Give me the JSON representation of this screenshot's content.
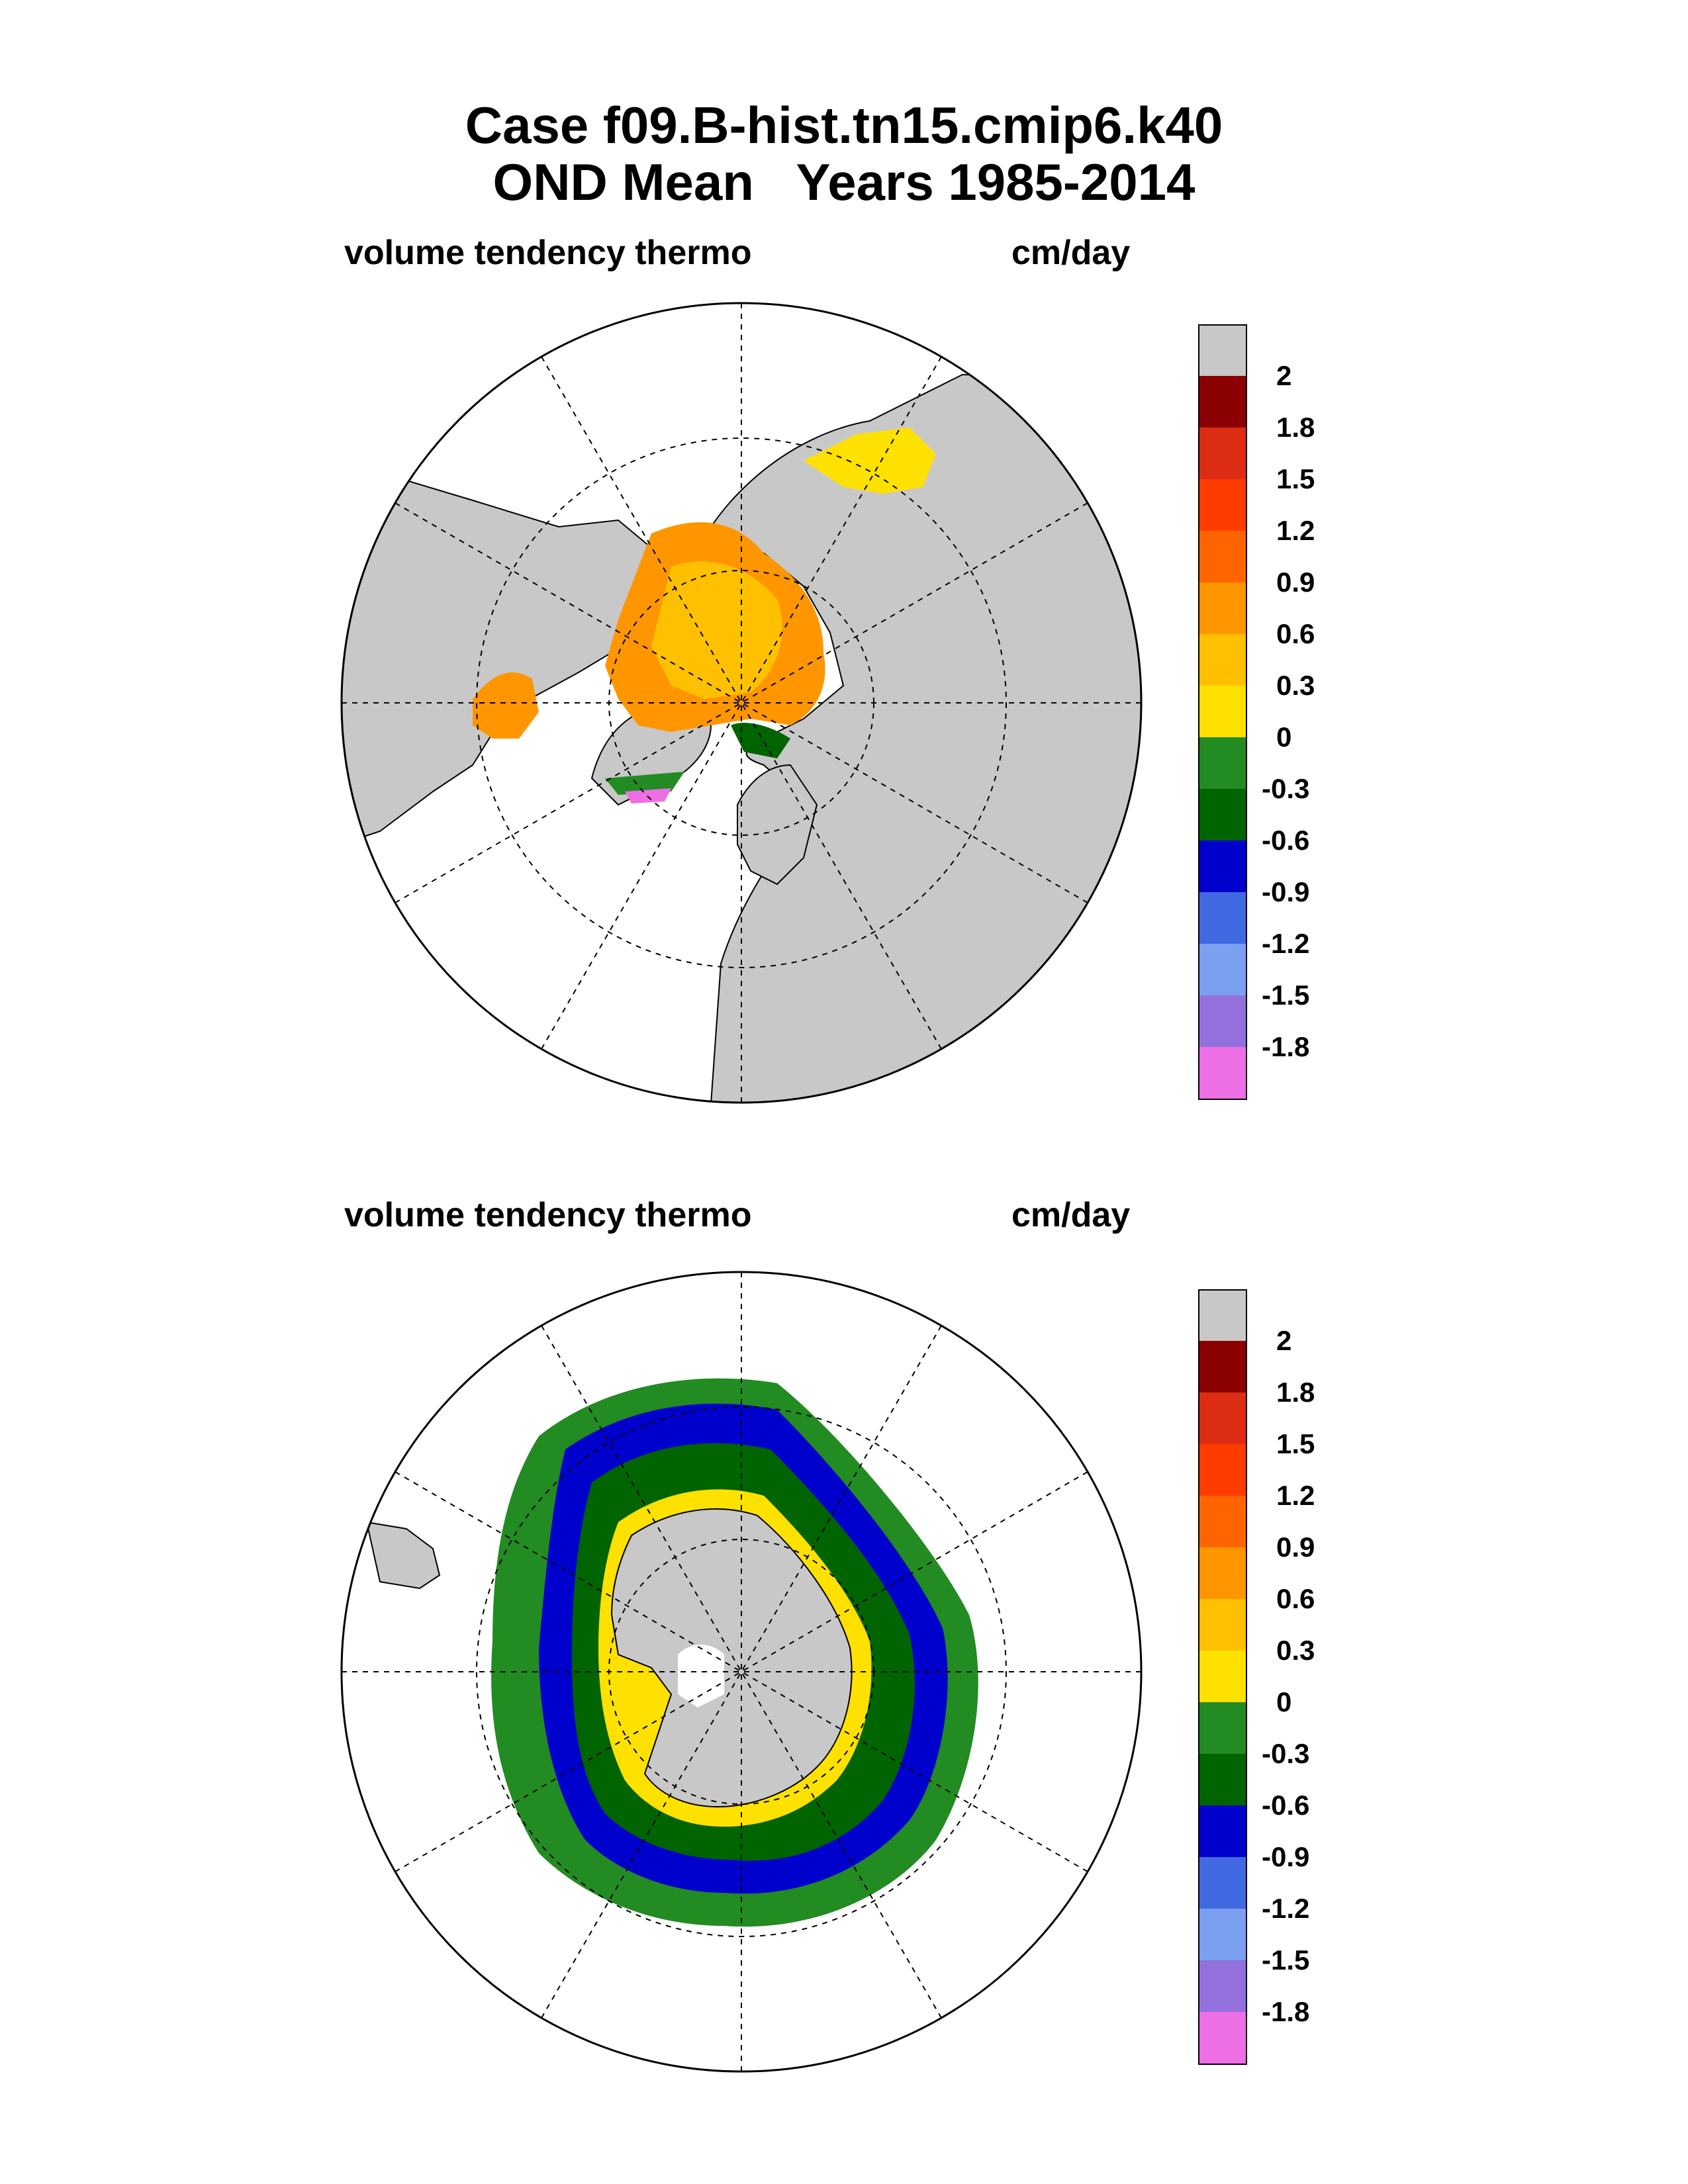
{
  "title": {
    "line1": "Case f09.B-hist.tn15.cmip6.k40",
    "line2": "OND Mean   Years 1985-2014"
  },
  "panels": [
    {
      "id": "arctic",
      "left_label": "volume tendency thermo",
      "right_label": "cm/day",
      "hemisphere": "north",
      "dominant_values": "0.3 to 0.9 over central Arctic, -0.3 to -1.8 near Greenland/Barents ice edge"
    },
    {
      "id": "antarctic",
      "left_label": "volume tendency thermo",
      "right_label": "cm/day",
      "hemisphere": "south",
      "dominant_values": "0 to 0.6 near coast, -0.3 to -1.2 in outer pack ice ring"
    }
  ],
  "colorbar": {
    "labels": [
      "2",
      "1.8",
      "1.5",
      "1.2",
      "0.9",
      "0.6",
      "0.3",
      "0",
      "-0.3",
      "-0.6",
      "-0.9",
      "-1.2",
      "-1.5",
      "-1.8"
    ],
    "colors": [
      "#c8c8c8",
      "#8b0000",
      "#dc2c14",
      "#ff3c00",
      "#ff6400",
      "#ff9600",
      "#ffc000",
      "#ffe100",
      "#228b22",
      "#006400",
      "#0000cd",
      "#4169e1",
      "#7ba0f0",
      "#9370db",
      "#ee6ee6"
    ],
    "land_color": "#c8c8c8"
  }
}
